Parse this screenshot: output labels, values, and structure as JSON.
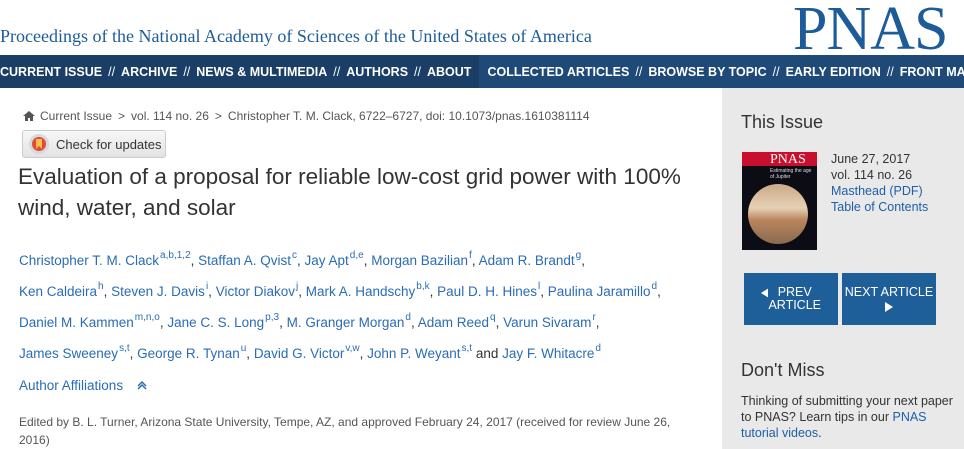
{
  "header": {
    "journal_name": "Proceedings of the National Academy of Sciences of the United States of America",
    "logo": "PNAS"
  },
  "nav": {
    "separator": "//",
    "left": [
      "CURRENT ISSUE",
      "ARCHIVE",
      "NEWS & MULTIMEDIA",
      "AUTHORS",
      "ABOUT"
    ],
    "right": [
      "COLLECTED ARTICLES",
      "BROWSE BY TOPIC",
      "EARLY EDITION",
      "FRONT MATTER"
    ]
  },
  "breadcrumb": {
    "separator": ">",
    "items": [
      "Current Issue",
      "vol. 114 no. 26",
      "Christopher T. M. Clack,  6722–6727, doi: 10.1073/pnas.1610381114"
    ]
  },
  "check_updates": "Check for updates",
  "article": {
    "title": "Evaluation of a proposal for reliable low-cost grid power with 100% wind, water, and solar",
    "author_separator": ",",
    "conjunction": "and",
    "author_lines": [
      [
        {
          "name": "Christopher T. M. Clack",
          "sup": "a,b,1,2"
        },
        {
          "name": "Staffan A. Qvist",
          "sup": "c"
        },
        {
          "name": "Jay Apt",
          "sup": "d,e"
        },
        {
          "name": "Morgan Bazilian",
          "sup": "f"
        },
        {
          "name": "Adam R. Brandt",
          "sup": "g"
        }
      ],
      [
        {
          "name": "Ken Caldeira",
          "sup": "h"
        },
        {
          "name": "Steven J. Davis",
          "sup": "i"
        },
        {
          "name": "Victor Diakov",
          "sup": "j"
        },
        {
          "name": "Mark A. Handschy",
          "sup": "b,k"
        },
        {
          "name": "Paul D. H. Hines",
          "sup": "l"
        },
        {
          "name": "Paulina Jaramillo",
          "sup": "d"
        }
      ],
      [
        {
          "name": "Daniel M. Kammen",
          "sup": "m,n,o"
        },
        {
          "name": "Jane C. S. Long",
          "sup": "p,3"
        },
        {
          "name": "M. Granger Morgan",
          "sup": "d"
        },
        {
          "name": "Adam Reed",
          "sup": "q"
        },
        {
          "name": "Varun Sivaram",
          "sup": "r"
        }
      ],
      [
        {
          "name": "James Sweeney",
          "sup": "s,t"
        },
        {
          "name": "George R. Tynan",
          "sup": "u"
        },
        {
          "name": "David G. Victor",
          "sup": "v,w"
        },
        {
          "name": "John P. Weyant",
          "sup": "s,t"
        },
        {
          "name": "Jay F. Whitacre",
          "sup": "d"
        }
      ]
    ],
    "affiliations": "Author Affiliations",
    "edited": "Edited by B. L. Turner, Arizona State University, Tempe, AZ, and approved February 24, 2017 (received for review June 26, 2016)"
  },
  "sidebar": {
    "this_issue": "This Issue",
    "cover": {
      "title": "PNAS",
      "headline": "Estimating the age of Jupiter"
    },
    "issue_date": "June 27, 2017",
    "issue_vol": "vol. 114 no. 26",
    "masthead": "Masthead (PDF)",
    "toc": "Table of Contents",
    "prev": "PREV ARTICLE",
    "next": "NEXT ARTICLE",
    "dont_miss": "Don't Miss",
    "promo": {
      "text": "Thinking of submitting your next paper to PNAS? Learn tips in our ",
      "link": "PNAS tutorial videos",
      "end": "."
    }
  }
}
